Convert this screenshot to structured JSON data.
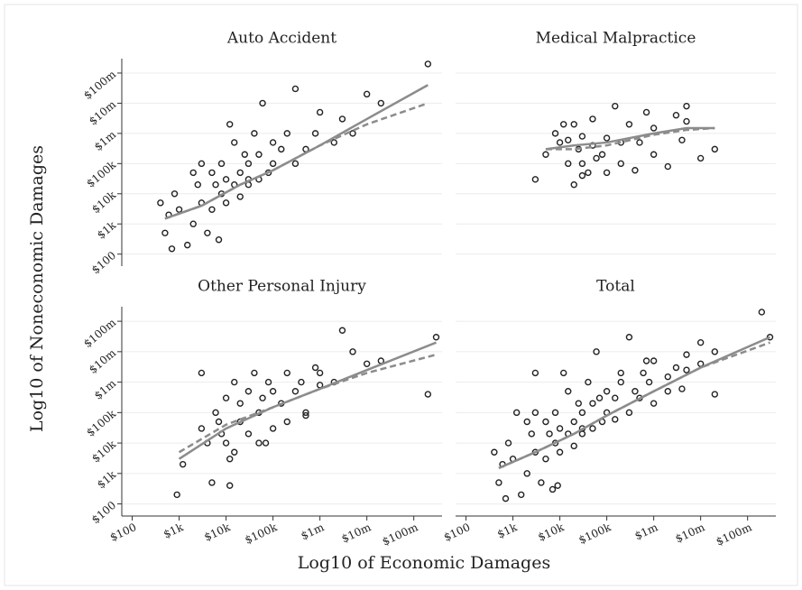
{
  "chart_data": {
    "type": "scatter",
    "log": true,
    "grid": true,
    "xlabel": "Log10 of Economic Damages",
    "ylabel": "Log10 of Noneconomic Damages",
    "xlim": [
      60,
      400000000
    ],
    "ylim": [
      40,
      300000000
    ],
    "xticks": [
      {
        "value": 100,
        "label": "$100"
      },
      {
        "value": 1000,
        "label": "$1k"
      },
      {
        "value": 10000,
        "label": "$10k"
      },
      {
        "value": 100000,
        "label": "$100k"
      },
      {
        "value": 1000000,
        "label": "$1m"
      },
      {
        "value": 10000000,
        "label": "$10m"
      },
      {
        "value": 100000000,
        "label": "$100m"
      }
    ],
    "yticks": [
      {
        "value": 100,
        "label": "$100"
      },
      {
        "value": 1000,
        "label": "$1k"
      },
      {
        "value": 10000,
        "label": "$10k"
      },
      {
        "value": 100000,
        "label": "$100k"
      },
      {
        "value": 1000000,
        "label": "$1m"
      },
      {
        "value": 10000000,
        "label": "$10m"
      },
      {
        "value": 100000000,
        "label": "$100m"
      }
    ],
    "panels": [
      {
        "title": "Auto Accident",
        "series": [
          {
            "style": "markers",
            "color": "#222222",
            "x": [
              400,
              500,
              600,
              800,
              1000,
              1500,
              2000,
              2500,
              3000,
              4000,
              5000,
              5000,
              6000,
              8000,
              8000,
              10000,
              10000,
              12000,
              15000,
              15000,
              20000,
              20000,
              25000,
              30000,
              30000,
              40000,
              50000,
              50000,
              60000,
              80000,
              100000,
              100000,
              150000,
              200000,
              300000,
              300000,
              500000,
              800000,
              1000000,
              2000000,
              3000000,
              5000000,
              10000000,
              20000000,
              200000000,
              3000,
              7000,
              2000,
              30000,
              700
            ],
            "y": [
              5000,
              500,
              2000,
              10000,
              3000,
              200,
              1000,
              20000,
              5000,
              500,
              50000,
              3000,
              20000,
              10000,
              100000,
              30000,
              5000,
              2000000,
              20000,
              500000,
              50000,
              8000,
              200000,
              20000,
              100000,
              1000000,
              30000,
              200000,
              10000000,
              50000,
              100000,
              500000,
              300000,
              1000000,
              100000,
              30000000,
              300000,
              1000000,
              5000000,
              500000,
              3000000,
              1000000,
              20000000,
              10000000,
              200000000,
              100000,
              300,
              50000,
              30000,
              150
            ]
          },
          {
            "style": "solid",
            "color": "#8c8c8c",
            "x": [
              500,
              3000,
              20000,
              100000,
              1000000,
              10000000,
              200000000
            ],
            "y": [
              1500,
              4000,
              20000,
              60000,
              400000,
              3000000,
              40000000
            ]
          },
          {
            "style": "dashed",
            "color": "#8c8c8c",
            "x": [
              500,
              3000,
              20000,
              100000,
              1000000,
              10000000,
              200000000
            ],
            "y": [
              1500,
              4000,
              20000,
              60000,
              400000,
              2000000,
              10000000
            ]
          }
        ]
      },
      {
        "title": "Medical Malpractice",
        "series": [
          {
            "style": "markers",
            "color": "#222222",
            "x": [
              3000,
              5000,
              8000,
              10000,
              12000,
              15000,
              15000,
              20000,
              20000,
              25000,
              30000,
              30000,
              40000,
              50000,
              50000,
              60000,
              80000,
              100000,
              100000,
              150000,
              200000,
              200000,
              300000,
              400000,
              500000,
              700000,
              1000000,
              1000000,
              2000000,
              3000000,
              4000000,
              5000000,
              5000000,
              10000000,
              20000000,
              30000
            ],
            "y": [
              30000,
              200000,
              1000000,
              500000,
              2000000,
              100000,
              600000,
              20000,
              2000000,
              300000,
              100000,
              800000,
              50000,
              3000000,
              400000,
              150000,
              200000,
              700000,
              50000,
              8000000,
              500000,
              100000,
              2000000,
              60000,
              500000,
              5000000,
              200000,
              1500000,
              80000,
              4000000,
              600000,
              8000000,
              2500000,
              150000,
              300000,
              40000
            ]
          },
          {
            "style": "solid",
            "color": "#8c8c8c",
            "x": [
              5000,
              20000,
              100000,
              1000000,
              5000000,
              20000000
            ],
            "y": [
              300000,
              400000,
              500000,
              1000000,
              1500000,
              1500000
            ]
          },
          {
            "style": "dashed",
            "color": "#8c8c8c",
            "x": [
              5000,
              20000,
              100000,
              1000000,
              5000000,
              20000000
            ],
            "y": [
              300000,
              300000,
              400000,
              900000,
              1300000,
              1500000
            ]
          }
        ]
      },
      {
        "title": "Other Personal Injury",
        "series": [
          {
            "style": "markers",
            "color": "#222222",
            "x": [
              900,
              1200,
              3000,
              4000,
              5000,
              6000,
              7000,
              8000,
              10000,
              10000,
              12000,
              15000,
              15000,
              20000,
              20000,
              30000,
              30000,
              40000,
              50000,
              50000,
              60000,
              80000,
              100000,
              100000,
              150000,
              200000,
              200000,
              300000,
              400000,
              500000,
              800000,
              1000000,
              1000000,
              2000000,
              3000000,
              5000000,
              10000000,
              20000000,
              200000000,
              300000000,
              3000,
              12000,
              70000,
              500000
            ],
            "y": [
              200,
              2000,
              2000000,
              10000,
              500,
              100000,
              50000,
              20000,
              300000,
              10000,
              400,
              1000000,
              5000,
              50000,
              200000,
              20000,
              500000,
              2000000,
              100000,
              10000,
              300000,
              1000000,
              30000,
              500000,
              200000,
              2000000,
              50000,
              500000,
              1000000,
              100000,
              3000000,
              800000,
              2000000,
              1000000,
              50000000,
              10000000,
              4000000,
              5000000,
              400000,
              30000000,
              30000,
              3000,
              10000,
              80000
            ]
          },
          {
            "style": "solid",
            "color": "#8c8c8c",
            "x": [
              1000,
              10000,
              100000,
              1000000,
              10000000,
              300000000
            ],
            "y": [
              3000,
              30000,
              150000,
              600000,
              2500000,
              20000000
            ]
          },
          {
            "style": "dashed",
            "color": "#8c8c8c",
            "x": [
              1000,
              10000,
              100000,
              1000000,
              10000000,
              300000000
            ],
            "y": [
              5000,
              40000,
              150000,
              600000,
              2000000,
              8000000
            ]
          }
        ]
      },
      {
        "title": "Total",
        "series": [
          {
            "style": "markers",
            "color": "#222222",
            "x": [
              400,
              500,
              600,
              800,
              1000,
              1200,
              1500,
              2000,
              2500,
              3000,
              3000,
              4000,
              5000,
              5000,
              6000,
              8000,
              8000,
              10000,
              10000,
              12000,
              15000,
              15000,
              20000,
              20000,
              25000,
              30000,
              30000,
              40000,
              50000,
              50000,
              60000,
              80000,
              100000,
              100000,
              150000,
              200000,
              200000,
              300000,
              300000,
              400000,
              500000,
              700000,
              800000,
              1000000,
              1000000,
              2000000,
              2000000,
              3000000,
              4000000,
              5000000,
              5000000,
              10000000,
              10000000,
              20000000,
              20000000,
              200000000,
              300000000,
              3000,
              7000,
              2000,
              30000,
              700,
              70000,
              150000,
              600000,
              9000
            ],
            "y": [
              5000,
              500,
              2000,
              10000,
              3000,
              100000,
              200,
              1000,
              20000,
              5000,
              2000000,
              500,
              50000,
              3000,
              20000,
              10000,
              100000,
              30000,
              5000,
              2000000,
              20000,
              500000,
              50000,
              8000,
              200000,
              20000,
              100000,
              1000000,
              30000,
              200000,
              10000000,
              50000,
              100000,
              500000,
              300000,
              1000000,
              2000000,
              100000,
              30000000,
              500000,
              300000,
              5000000,
              1000000,
              5000000,
              200000,
              500000,
              1500000,
              3000000,
              600000,
              8000000,
              2500000,
              20000000,
              4000000,
              10000000,
              400000,
              200000000,
              30000000,
              100000,
              300,
              50000,
              30000,
              150,
              300000,
              60000,
              2000000,
              400
            ]
          },
          {
            "style": "solid",
            "color": "#8c8c8c",
            "x": [
              500,
              3000,
              20000,
              100000,
              1000000,
              10000000,
              300000000
            ],
            "y": [
              1500,
              5000,
              20000,
              80000,
              500000,
              3000000,
              30000000
            ]
          },
          {
            "style": "dashed",
            "color": "#8c8c8c",
            "x": [
              500,
              3000,
              20000,
              100000,
              1000000,
              10000000,
              300000000
            ],
            "y": [
              1500,
              5000,
              20000,
              80000,
              500000,
              3000000,
              20000000
            ]
          }
        ]
      }
    ]
  }
}
